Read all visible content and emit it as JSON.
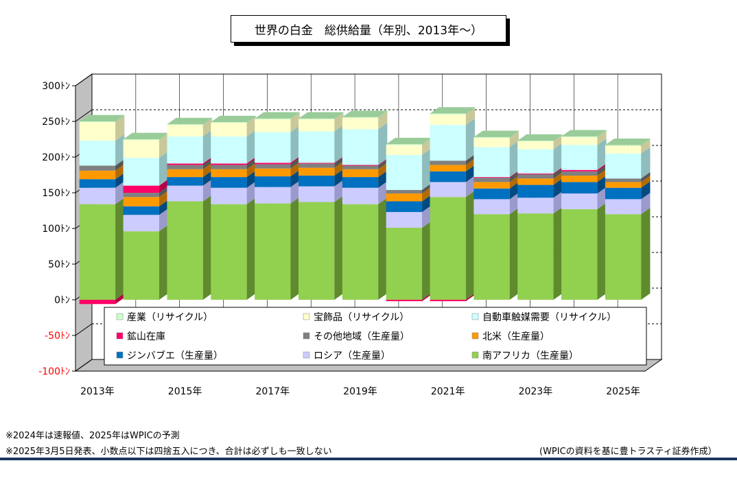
{
  "title": "世界の白金　総供給量（年別、2013年～）",
  "notes": [
    "※2024年は速報値、2025年はWPICの予測",
    "※2025年3月5日発表、小数点以下は四捨五入につき、合計は必ずしも一致しない"
  ],
  "source": "(WPICの資料を基に豊トラスティ証券作成）",
  "chart_data": {
    "type": "bar",
    "stacked": true,
    "three_d": true,
    "title": "世界の白金　総供給量（年別、2013年～）",
    "categories": [
      "2013",
      "2014",
      "2015",
      "2016",
      "2017",
      "2018",
      "2019",
      "2020",
      "2021",
      "2022",
      "2023",
      "2024",
      "2025"
    ],
    "x_tick_labels": [
      "2013年",
      "",
      "2015年",
      "",
      "2017年",
      "",
      "2019年",
      "",
      "2021年",
      "",
      "2023年",
      "",
      "2025年"
    ],
    "y_ticks": [
      300,
      250,
      200,
      150,
      100,
      50,
      0,
      -50,
      -100
    ],
    "y_tick_labels": [
      "300ﾄﾝ",
      "250ﾄﾝ",
      "200ﾄﾝ",
      "150ﾄﾝ",
      "100ﾄﾝ",
      "50ﾄﾝ",
      "0ﾄﾝ",
      "-50ﾄﾝ",
      "-100ﾄﾝ"
    ],
    "ylim": [
      -100,
      300
    ],
    "grid": true,
    "legend_position": "inside-bottom",
    "series": [
      {
        "name": "南アフリカ（生産量）",
        "color": "#92d050",
        "side": "#5f8a2e",
        "top": "#b6e383",
        "values": [
          134,
          96,
          138,
          134,
          135,
          137,
          134,
          101,
          144,
          120,
          121,
          127,
          120
        ]
      },
      {
        "name": "ロシア（生産量）",
        "color": "#ccccff",
        "side": "#9a9acc",
        "top": "#e0e0ff",
        "values": [
          23,
          23,
          22,
          23,
          23,
          22,
          23,
          22,
          21,
          21,
          22,
          22,
          21
        ]
      },
      {
        "name": "ジンバブエ（生産量）",
        "color": "#0070c0",
        "side": "#004a80",
        "top": "#3a90d0",
        "values": [
          12,
          12,
          12,
          15,
          15,
          15,
          15,
          15,
          15,
          15,
          18,
          16,
          16
        ]
      },
      {
        "name": "北米（生産量）",
        "color": "#ff9900",
        "side": "#b36b00",
        "top": "#ffbb55",
        "values": [
          12,
          13,
          11,
          11,
          11,
          11,
          11,
          11,
          9,
          9,
          9,
          9,
          8
        ]
      },
      {
        "name": "その他地域（生産量）",
        "color": "#808080",
        "side": "#555555",
        "top": "#aaaaaa",
        "values": [
          7,
          6,
          6,
          6,
          6,
          6,
          5,
          5,
          6,
          6,
          6,
          6,
          5
        ]
      },
      {
        "name": "鉱山在庫",
        "color": "#ff0066",
        "side": "#b30047",
        "top": "#ff66a3",
        "values": [
          -6,
          10,
          2,
          2,
          2,
          1,
          1,
          -2,
          -2,
          1,
          1,
          2,
          0
        ]
      },
      {
        "name": "自動車触媒需要（リサイクル）",
        "color": "#ccffff",
        "side": "#8fbcbc",
        "top": "#e6ffff",
        "values": [
          35,
          39,
          38,
          38,
          43,
          44,
          50,
          49,
          50,
          42,
          34,
          35,
          35
        ]
      },
      {
        "name": "宝飾品（リサイクル）",
        "color": "#ffffcc",
        "side": "#c8c89a",
        "top": "#ffffe6",
        "values": [
          26,
          25,
          16,
          19,
          18,
          17,
          16,
          14,
          15,
          13,
          11,
          11,
          11
        ]
      },
      {
        "name": "産業（リサイクル）",
        "color": "#ccffcc",
        "side": "#9acc9a",
        "top": "#99cc99",
        "values": [
          1,
          1,
          1,
          1,
          1,
          1,
          1,
          1,
          1,
          1,
          1,
          1,
          1
        ]
      }
    ],
    "legend_order": [
      "産業（リサイクル）",
      "宝飾品（リサイクル）",
      "自動車触媒需要（リサイクル）",
      "鉱山在庫",
      "その他地域（生産量）",
      "北米（生産量）",
      "ジンバブエ（生産量）",
      "ロシア（生産量）",
      "南アフリカ（生産量）"
    ]
  }
}
